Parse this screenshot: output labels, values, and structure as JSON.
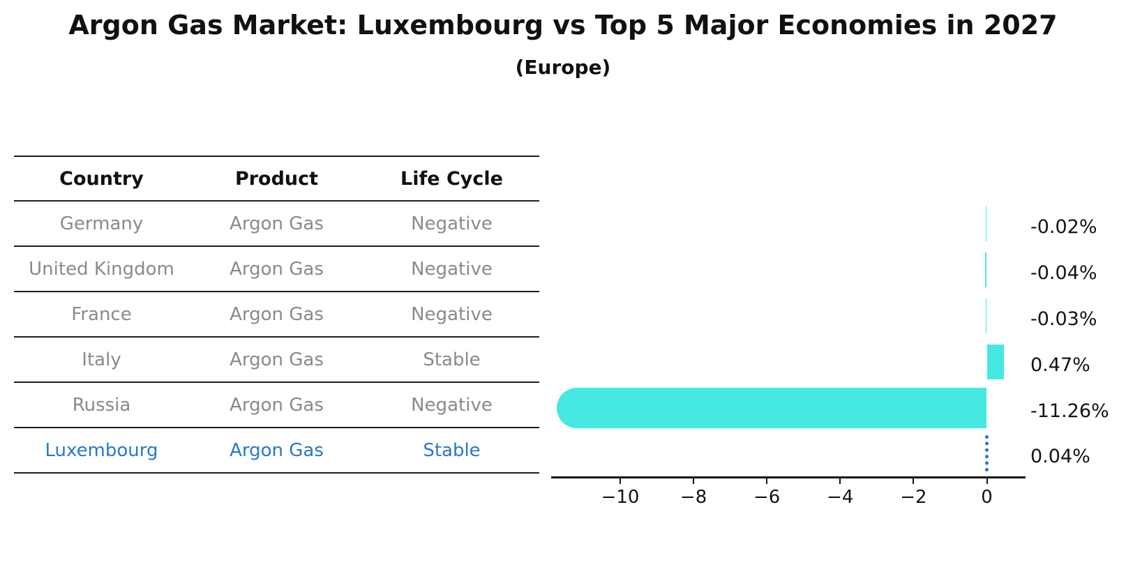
{
  "title": "Argon Gas Market: Luxembourg vs Top 5 Major Economies in 2027",
  "subtitle": "(Europe)",
  "colors": {
    "bar_fill": "#45e9e1",
    "highlight_text": "#2878cd",
    "highlight_marker": "#2b6fdd",
    "row_text": "#8a8a8a",
    "axis_line": "#151515"
  },
  "table": {
    "headers": [
      "Country",
      "Product",
      "Life Cycle"
    ],
    "rows": [
      {
        "country": "Germany",
        "product": "Argon Gas",
        "life_cycle": "Negative",
        "highlight": false
      },
      {
        "country": "United Kingdom",
        "product": "Argon Gas",
        "life_cycle": "Negative",
        "highlight": false
      },
      {
        "country": "France",
        "product": "Argon Gas",
        "life_cycle": "Negative",
        "highlight": false
      },
      {
        "country": "Italy",
        "product": "Argon Gas",
        "life_cycle": "Stable",
        "highlight": false
      },
      {
        "country": "Russia",
        "product": "Argon Gas",
        "life_cycle": "Negative",
        "highlight": false
      },
      {
        "country": "Luxembourg",
        "product": "Argon Gas",
        "life_cycle": "Stable",
        "highlight": true
      }
    ]
  },
  "chart_data": {
    "type": "bar",
    "orientation": "horizontal",
    "title": "Argon Gas Market: Luxembourg vs Top 5 Major Economies in 2027 (Europe)",
    "categories": [
      "Germany",
      "United Kingdom",
      "France",
      "Italy",
      "Russia",
      "Luxembourg"
    ],
    "values": [
      -0.02,
      -0.04,
      -0.03,
      0.47,
      -11.26,
      0.04
    ],
    "value_labels": [
      "-0.02%",
      "-0.04%",
      "-0.03%",
      "0.47%",
      "-11.26%",
      "0.04%"
    ],
    "unit": "percent",
    "highlight_category": "Luxembourg",
    "x_tick_labels": [
      "−10",
      "−8",
      "−6",
      "−4",
      "−2",
      "0"
    ],
    "x_tick_values": [
      -10,
      -8,
      -6,
      -4,
      -2,
      0
    ],
    "xlim": [
      -11.9,
      1.1
    ],
    "grid": false,
    "legend": null
  }
}
